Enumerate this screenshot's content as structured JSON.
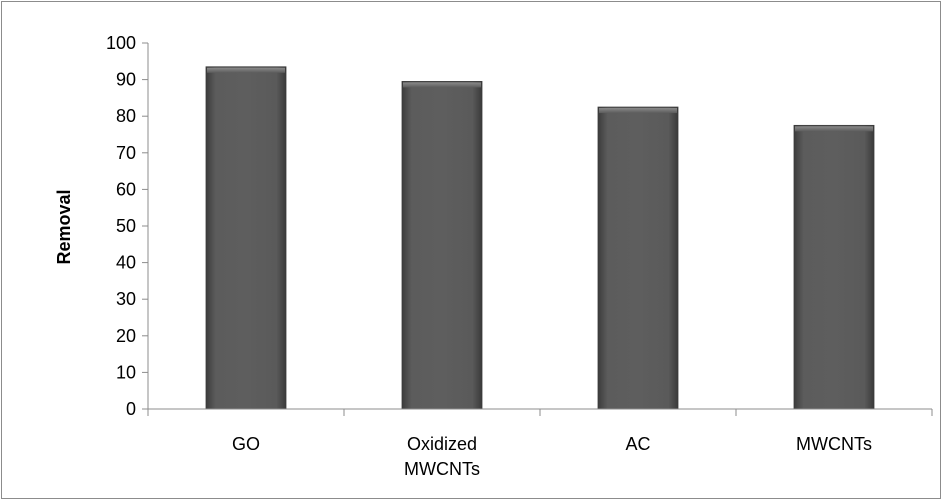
{
  "chart_data": {
    "type": "bar",
    "title": "",
    "xlabel": "",
    "ylabel": "Removal",
    "categories": [
      [
        "GO"
      ],
      [
        "Oxidized",
        "MWCNTs"
      ],
      [
        "AC"
      ],
      [
        "MWCNTs"
      ]
    ],
    "values": [
      93.5,
      89.5,
      82.5,
      77.5
    ],
    "ylim": [
      0,
      100
    ],
    "yticks": [
      0,
      10,
      20,
      30,
      40,
      50,
      60,
      70,
      80,
      90,
      100
    ],
    "grid": false,
    "legend": "none",
    "bar_color": "#5a5a5a"
  }
}
